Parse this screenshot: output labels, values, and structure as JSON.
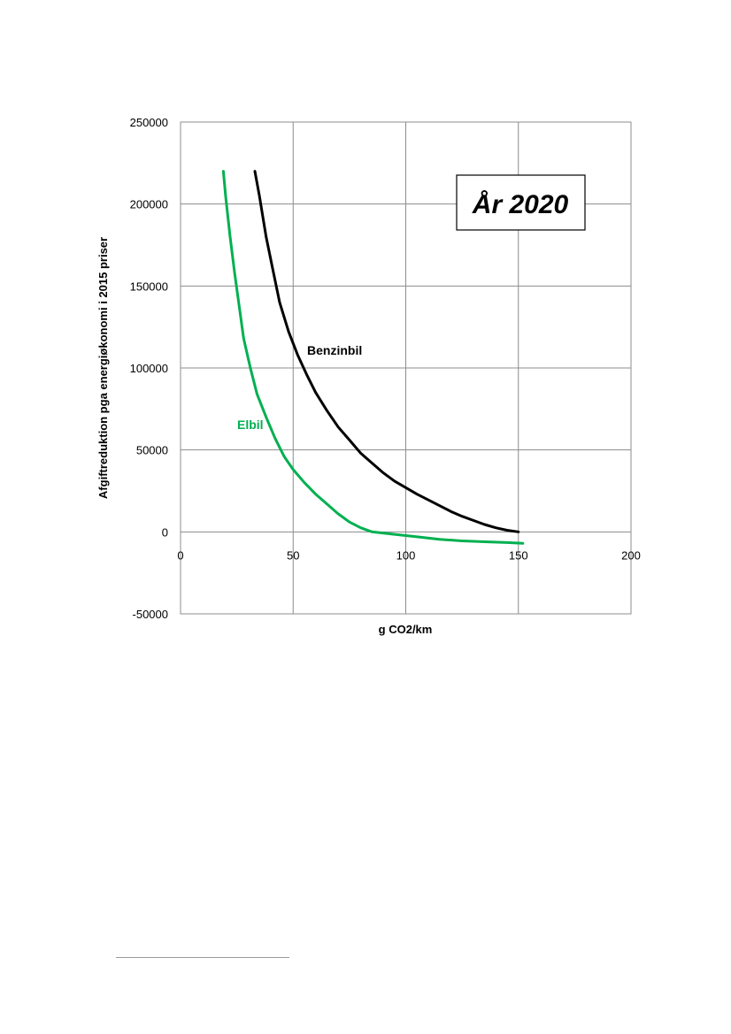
{
  "chart_data": {
    "type": "line",
    "title": "År 2020",
    "xlabel": "g CO2/km",
    "ylabel": "Afgiftreduktion pga energiøkonomi i 2015 priser",
    "xlim": [
      0,
      200
    ],
    "ylim": [
      -50000,
      250000
    ],
    "x_ticks": [
      0,
      50,
      100,
      150,
      200
    ],
    "y_ticks": [
      -50000,
      0,
      50000,
      100000,
      150000,
      200000,
      250000
    ],
    "grid": true,
    "legend": "inline labels",
    "series": [
      {
        "name": "Benzinbil",
        "color": "#000000",
        "points": [
          [
            33,
            220000
          ],
          [
            35,
            205000
          ],
          [
            38,
            180000
          ],
          [
            41,
            160000
          ],
          [
            44,
            140000
          ],
          [
            48,
            122000
          ],
          [
            52,
            108000
          ],
          [
            56,
            96000
          ],
          [
            60,
            85000
          ],
          [
            65,
            74000
          ],
          [
            70,
            64000
          ],
          [
            75,
            56000
          ],
          [
            80,
            48000
          ],
          [
            85,
            42000
          ],
          [
            90,
            36000
          ],
          [
            95,
            31000
          ],
          [
            100,
            27000
          ],
          [
            105,
            23000
          ],
          [
            110,
            19500
          ],
          [
            115,
            16000
          ],
          [
            120,
            12500
          ],
          [
            125,
            9500
          ],
          [
            130,
            7000
          ],
          [
            135,
            4500
          ],
          [
            140,
            2500
          ],
          [
            145,
            1000
          ],
          [
            150,
            0
          ]
        ]
      },
      {
        "name": "Elbil",
        "color": "#00b050",
        "points": [
          [
            19,
            220000
          ],
          [
            20,
            205000
          ],
          [
            22,
            180000
          ],
          [
            24,
            158000
          ],
          [
            26,
            138000
          ],
          [
            28,
            118000
          ],
          [
            31,
            100000
          ],
          [
            34,
            84000
          ],
          [
            38,
            70000
          ],
          [
            42,
            57000
          ],
          [
            46,
            46000
          ],
          [
            50,
            38000
          ],
          [
            55,
            30000
          ],
          [
            60,
            23000
          ],
          [
            65,
            17000
          ],
          [
            70,
            11000
          ],
          [
            75,
            6000
          ],
          [
            80,
            2500
          ],
          [
            85,
            0
          ],
          [
            95,
            -1500
          ],
          [
            105,
            -3000
          ],
          [
            115,
            -4500
          ],
          [
            125,
            -5500
          ],
          [
            135,
            -6000
          ],
          [
            145,
            -6500
          ],
          [
            152,
            -7000
          ]
        ]
      }
    ],
    "annotations": [
      {
        "text": "Benzinbil",
        "series": "Benzinbil"
      },
      {
        "text": "Elbil",
        "series": "Elbil"
      }
    ]
  }
}
